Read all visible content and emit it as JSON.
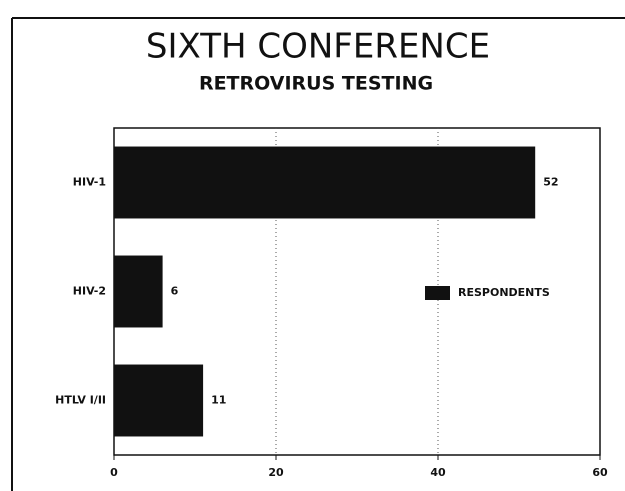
{
  "chart_data": {
    "type": "barh",
    "title": "SIXTH CONFERENCE",
    "subtitle": "RETROVIRUS TESTING",
    "categories": [
      "HIV-1",
      "HIV-2",
      "HTLV I/II"
    ],
    "series": [
      {
        "name": "RESPONDENTS",
        "color": "#111111",
        "values": [
          52,
          6,
          11
        ]
      }
    ],
    "xlim": [
      0,
      60
    ],
    "xticks": [
      0,
      20,
      40,
      60
    ],
    "grid": true,
    "legend": "right"
  }
}
